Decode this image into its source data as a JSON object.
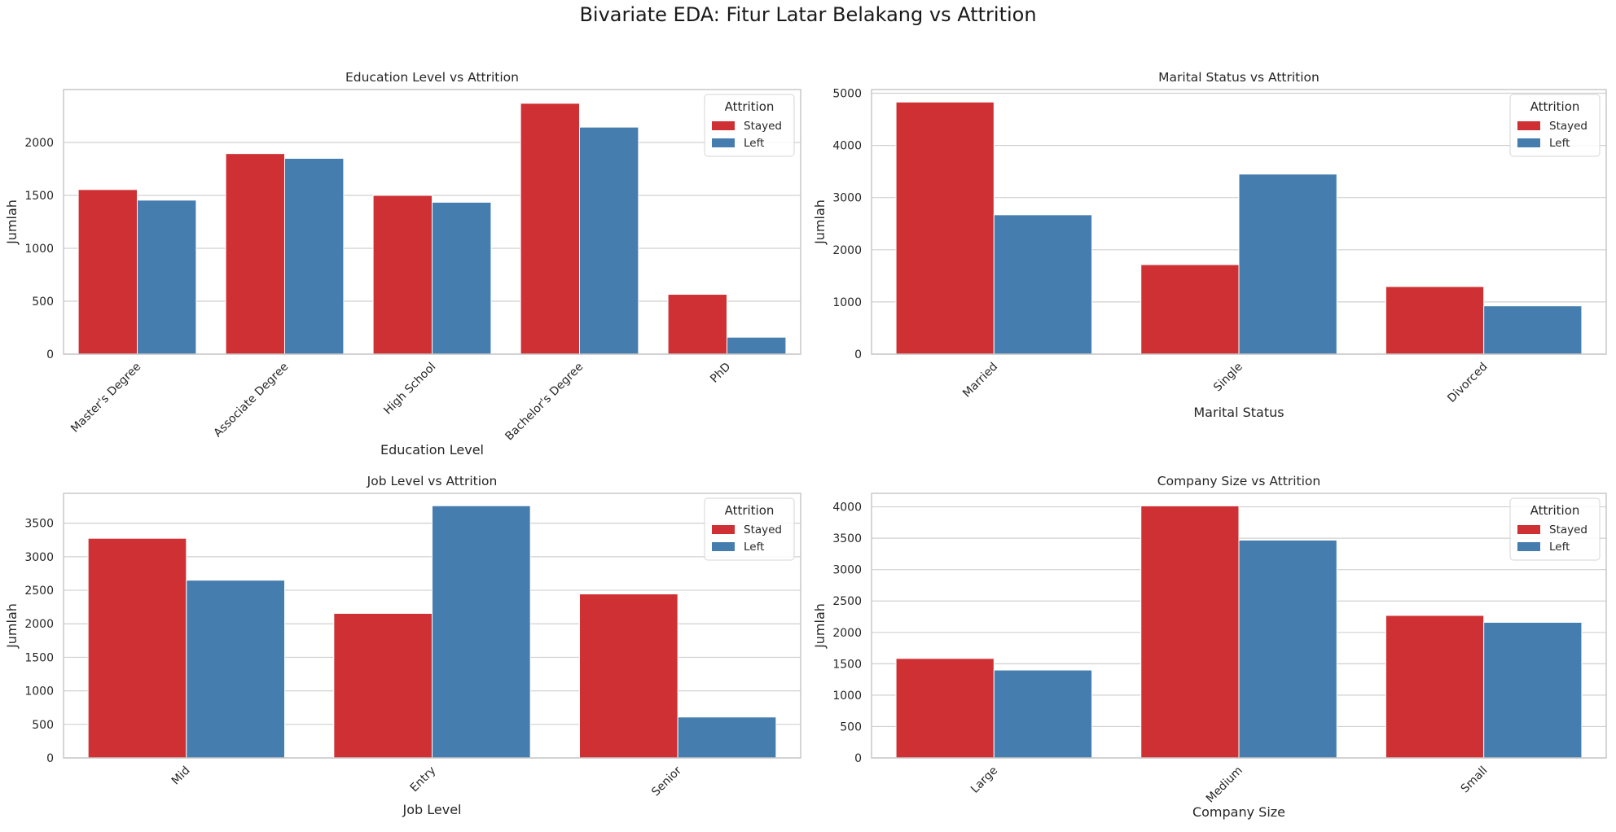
{
  "suptitle": "Bivariate EDA: Fitur Latar Belakang vs Attrition",
  "colors": {
    "stayed": "#CE3033",
    "left": "#457DAE",
    "grid": "#d0d0d0",
    "spine": "#c8c8c8"
  },
  "legend_title": "Attrition",
  "chart_data": [
    {
      "type": "bar",
      "title": "Education Level vs Attrition",
      "xlabel": "Education Level",
      "ylabel": "Jumlah",
      "categories": [
        "Master's Degree",
        "Associate Degree",
        "High School",
        "Bachelor's Degree",
        "PhD"
      ],
      "series": [
        {
          "name": "Stayed",
          "values": [
            1555,
            1895,
            1500,
            2370,
            565
          ]
        },
        {
          "name": "Left",
          "values": [
            1455,
            1850,
            1435,
            2145,
            160
          ]
        }
      ],
      "ylim": [
        0,
        2500
      ],
      "yticks": [
        0,
        500,
        1000,
        1500,
        2000
      ],
      "grid": true,
      "legend": "top-right"
    },
    {
      "type": "bar",
      "title": "Marital Status vs Attrition",
      "xlabel": "Marital Status",
      "ylabel": "Jumlah",
      "categories": [
        "Married",
        "Single",
        "Divorced"
      ],
      "series": [
        {
          "name": "Stayed",
          "values": [
            4830,
            1715,
            1295
          ]
        },
        {
          "name": "Left",
          "values": [
            2670,
            3450,
            925
          ]
        }
      ],
      "ylim": [
        0,
        5070
      ],
      "yticks": [
        0,
        1000,
        2000,
        3000,
        4000,
        5000
      ],
      "grid": true,
      "legend": "top-right"
    },
    {
      "type": "bar",
      "title": "Job Level vs Attrition",
      "xlabel": "Job Level",
      "ylabel": "Jumlah",
      "categories": [
        "Mid",
        "Entry",
        "Senior"
      ],
      "series": [
        {
          "name": "Stayed",
          "values": [
            3275,
            2155,
            2445
          ]
        },
        {
          "name": "Left",
          "values": [
            2650,
            3760,
            610
          ]
        }
      ],
      "ylim": [
        0,
        3945
      ],
      "yticks": [
        0,
        500,
        1000,
        1500,
        2000,
        2500,
        3000,
        3500
      ],
      "grid": true,
      "legend": "top-right"
    },
    {
      "type": "bar",
      "title": "Company Size vs Attrition",
      "xlabel": "Company Size",
      "ylabel": "Jumlah",
      "categories": [
        "Large",
        "Medium",
        "Small"
      ],
      "series": [
        {
          "name": "Stayed",
          "values": [
            1585,
            4015,
            2270
          ]
        },
        {
          "name": "Left",
          "values": [
            1400,
            3470,
            2160
          ]
        }
      ],
      "ylim": [
        0,
        4215
      ],
      "yticks": [
        0,
        500,
        1000,
        1500,
        2000,
        2500,
        3000,
        3500,
        4000
      ],
      "grid": true,
      "legend": "top-right"
    }
  ]
}
